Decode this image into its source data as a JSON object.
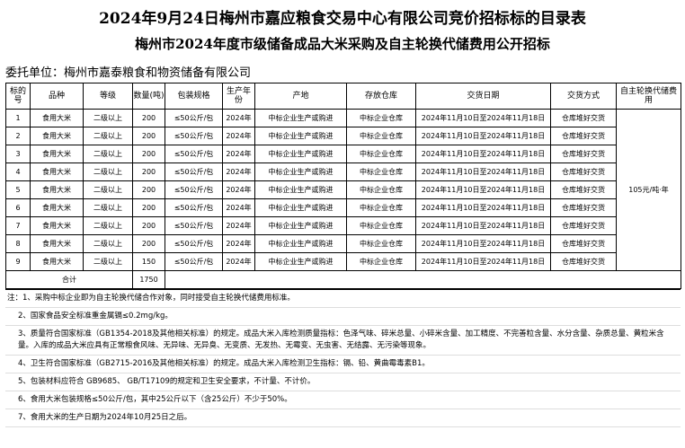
{
  "title": "2024年9月24日梅州市嘉应粮食交易中心有限公司竞价招标标的目录表",
  "subtitle": "梅州市2024年度市级储备成品大米采购及自主轮换代储费用公开招标",
  "entrust": "委托单位：梅州市嘉泰粮食和物资储备有限公司",
  "table": {
    "headers": [
      "标的号",
      "品种",
      "等级",
      "数量(吨)",
      "包装规格",
      "生产年份",
      "产地",
      "存放仓库",
      "交货日期",
      "交货方式",
      "自主轮换代储费用"
    ],
    "rows": [
      [
        1,
        "食用大米",
        "二级以上",
        200,
        "≤50公斤/包",
        "2024年",
        "中标企业生产或购进",
        "中标企业仓库",
        "2024年11月10日至2024年11月18日",
        "仓库堆好交货"
      ],
      [
        2,
        "食用大米",
        "二级以上",
        200,
        "≤50公斤/包",
        "2024年",
        "中标企业生产或购进",
        "中标企业仓库",
        "2024年11月10日至2024年11月18日",
        "仓库堆好交货"
      ],
      [
        3,
        "食用大米",
        "二级以上",
        200,
        "≤50公斤/包",
        "2024年",
        "中标企业生产或购进",
        "中标企业仓库",
        "2024年11月10日至2024年11月18日",
        "仓库堆好交货"
      ],
      [
        4,
        "食用大米",
        "二级以上",
        200,
        "≤50公斤/包",
        "2024年",
        "中标企业生产或购进",
        "中标企业仓库",
        "2024年11月10日至2024年11月18日",
        "仓库堆好交货"
      ],
      [
        5,
        "食用大米",
        "二级以上",
        200,
        "≤50公斤/包",
        "2024年",
        "中标企业生产或购进",
        "中标企业仓库",
        "2024年11月10日至2024年11月18日",
        "仓库堆好交货"
      ],
      [
        6,
        "食用大米",
        "二级以上",
        200,
        "≤50公斤/包",
        "2024年",
        "中标企业生产或购进",
        "中标企业仓库",
        "2024年11月10日至2024年11月18日",
        "仓库堆好交货"
      ],
      [
        7,
        "食用大米",
        "二级以上",
        200,
        "≤50公斤/包",
        "2024年",
        "中标企业生产或购进",
        "中标企业仓库",
        "2024年11月10日至2024年11月18日",
        "仓库堆好交货"
      ],
      [
        8,
        "食用大米",
        "二级以上",
        200,
        "≤50公斤/包",
        "2024年",
        "中标企业生产或购进",
        "中标企业仓库",
        "2024年11月10日至2024年11月18日",
        "仓库堆好交货"
      ],
      [
        9,
        "食用大米",
        "二级以上",
        150,
        "≤50公斤/包",
        "2024年",
        "中标企业生产或购进",
        "中标企业仓库",
        "2024年11月10日至2024年11月18日",
        "仓库堆好交货"
      ]
    ],
    "fee": "105元/吨·年",
    "total_label": "合计",
    "total_quantity": 1750
  },
  "notes": [
    "注：1、采购中标企业即为自主轮换代储合作对象，同时接受自主轮换代储费用标准。",
    "2、国家食品安全标准重金属镉≤0.2mg/kg。",
    "3、质量符合国家标准（GB1354-2018及其他相关标准）的规定。成品大米入库检测质量指标：色泽气味、碎米总量、小碎米含量、加工精度、不完善粒含量、水分含量、杂质总量、黄粒米含量。入库的成品大米应具有正常粮食风味、无异味、无异臭、无变质、无发热、无霉变、无虫害、无结露、无污染等现象。",
    "4、卫生符合国家标准（GB2715-2016及其他相关标准）的规定。成品大米入库检测卫生指标：镉、铅、黄曲霉毒素B1。",
    "5、包装材料应符合 GB9685、 GB/T17109的规定和卫生安全要求，不计量、不计价。",
    "6、食用大米包装规格≤50公斤/包，其中25公斤以下（含25公斤）不少于50%。",
    "7、食用大米的生产日期为2024年10月25日之后。"
  ]
}
